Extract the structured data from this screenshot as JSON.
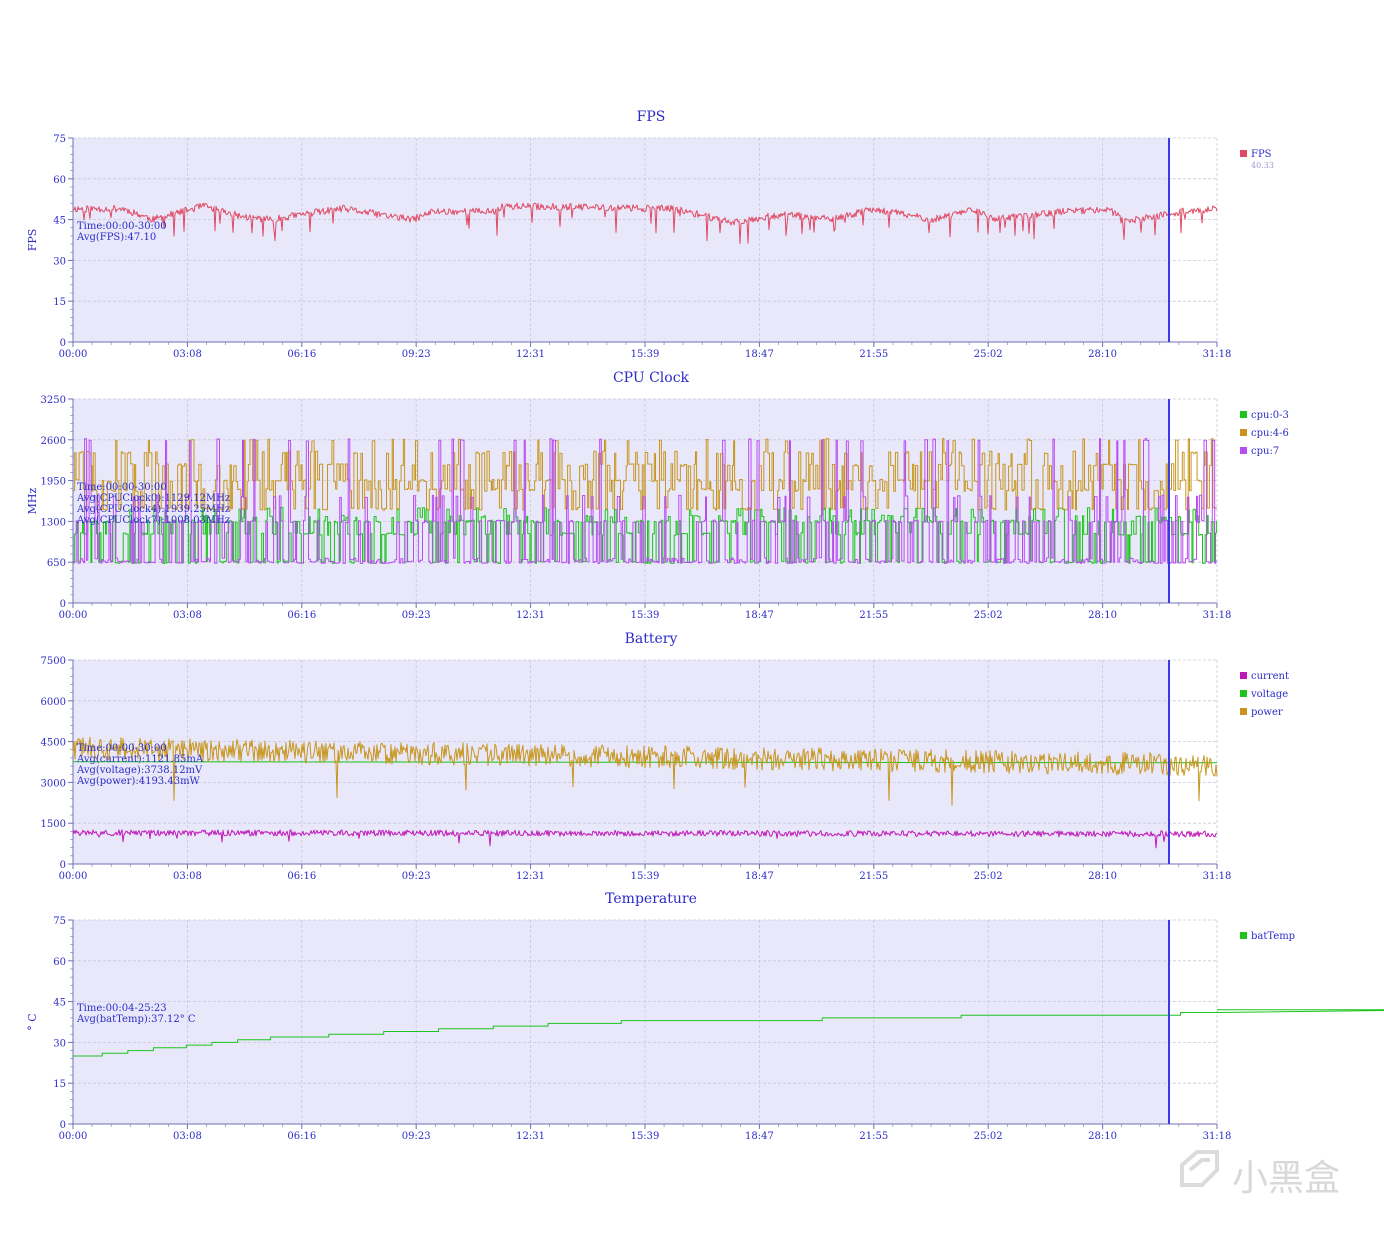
{
  "theme": {
    "plot_bg": "#e8e8fa",
    "axis_color": "#7070b8",
    "grid_color": "#c8c8dc",
    "text_color": "#2c2cc8",
    "marker_color": "#3a3ae6"
  },
  "x_tick_labels": [
    "00:00",
    "03:08",
    "06:16",
    "09:23",
    "12:31",
    "15:39",
    "18:47",
    "21:55",
    "25:02",
    "28:10",
    "31:18"
  ],
  "marker_time": "30:00",
  "watermark": {
    "text": "小黑盒",
    "icon": "heybox-logo-icon"
  },
  "chart_data": [
    {
      "type": "line",
      "title": "FPS",
      "ylabel": "FPS",
      "ylim": [
        0,
        75
      ],
      "yticks": [
        "0",
        "15",
        "30",
        "45",
        "60",
        "75"
      ],
      "annotation": [
        "Time:00:00-30:00",
        "Avg(FPS):47.10"
      ],
      "legend": [
        {
          "name": "FPS",
          "color": "#e04a64",
          "value": "40.33"
        }
      ],
      "series": [
        {
          "name": "FPS",
          "color": "#e04a64",
          "noise": 1.3,
          "spikes": 0.045,
          "spike_depth": 6,
          "seed": 11,
          "segments": [
            [
              0,
              49
            ],
            [
              50,
              49
            ],
            [
              80,
              45
            ],
            [
              130,
              50
            ],
            [
              170,
              46
            ],
            [
              200,
              45
            ],
            [
              230,
              47
            ],
            [
              270,
              49
            ],
            [
              340,
              45
            ],
            [
              360,
              48
            ],
            [
              420,
              48
            ],
            [
              430,
              50
            ],
            [
              600,
              49
            ],
            [
              660,
              44
            ],
            [
              710,
              47
            ],
            [
              760,
              45
            ],
            [
              800,
              49
            ],
            [
              860,
              45
            ],
            [
              900,
              49
            ],
            [
              920,
              45
            ],
            [
              990,
              48
            ],
            [
              1040,
              49
            ],
            [
              1050,
              44
            ],
            [
              1110,
              48
            ],
            [
              1145,
              49
            ],
            [
              1160,
              41
            ],
            [
              1220,
              40
            ]
          ]
        }
      ]
    },
    {
      "type": "line",
      "title": "CPU Clock",
      "ylabel": "MHz",
      "ylim": [
        0,
        3250
      ],
      "yticks": [
        "0",
        "650",
        "1300",
        "1950",
        "2600",
        "3250"
      ],
      "annotation": [
        "Time:00:00-30:00",
        "Avg(CPUClock0):1129.12MHz",
        "Avg(CPUClock4):1939.25MHz",
        "Avg(CPUClock7):1008.03MHz"
      ],
      "legend": [
        {
          "name": "cpu:0-3",
          "color": "#1cc41c"
        },
        {
          "name": "cpu:4-6",
          "color": "#c8961e"
        },
        {
          "name": "cpu:7",
          "color": "#b84cf0"
        }
      ],
      "series": [
        {
          "name": "cpu:0-3",
          "color": "#1cc41c",
          "levels": [
            650,
            1100,
            1300,
            1380,
            1500
          ],
          "weights": [
            0.3,
            0.25,
            0.25,
            0.12,
            0.08
          ],
          "seed": 21
        },
        {
          "name": "cpu:4-6",
          "color": "#c8961e",
          "levels": [
            1500,
            1800,
            1950,
            2200,
            2400,
            2600
          ],
          "weights": [
            0.22,
            0.2,
            0.2,
            0.18,
            0.14,
            0.06
          ],
          "seed": 33
        },
        {
          "name": "cpu:7",
          "color": "#b84cf0",
          "levels": [
            650,
            700,
            1300,
            1700,
            2600
          ],
          "weights": [
            0.45,
            0.15,
            0.25,
            0.08,
            0.07
          ],
          "seed": 47
        }
      ]
    },
    {
      "type": "line",
      "title": "Battery",
      "ylabel": "",
      "ylim": [
        0,
        7500
      ],
      "yticks": [
        "0",
        "1500",
        "3000",
        "4500",
        "6000",
        "7500"
      ],
      "annotation": [
        "Time:00:00-30:00",
        "Avg(current):1121.85mA",
        "Avg(voltage):3738.12mV",
        "Avg(power):4193.43mW"
      ],
      "legend": [
        {
          "name": "current",
          "color": "#c018b8"
        },
        {
          "name": "voltage",
          "color": "#1cc41c"
        },
        {
          "name": "power",
          "color": "#c8961e"
        }
      ],
      "series": [
        {
          "name": "current",
          "color": "#c018b8",
          "segments": [
            [
              0,
              1150
            ],
            [
              1220,
              1100
            ]
          ],
          "noise": 110,
          "spikes": 0.01,
          "spike_depth": 300,
          "seed": 57
        },
        {
          "name": "voltage",
          "color": "#1cc41c",
          "segments": [
            [
              0,
              3760
            ],
            [
              1220,
              3720
            ]
          ],
          "noise": 4,
          "spikes": 0,
          "spike_depth": 0,
          "seed": 61
        },
        {
          "name": "power",
          "color": "#c8961e",
          "segments": [
            [
              0,
              4250
            ],
            [
              1220,
              3600
            ]
          ],
          "noise": 420,
          "spikes": 0.012,
          "spike_depth": 1200,
          "seed": 73
        }
      ]
    },
    {
      "type": "line",
      "title": "Temperature",
      "ylabel": "° C",
      "ylim": [
        0,
        75
      ],
      "yticks": [
        "0",
        "15",
        "30",
        "45",
        "60",
        "75"
      ],
      "annotation": [
        "Time:00:04-25:23",
        "Avg(batTemp):37.12° C"
      ],
      "legend": [
        {
          "name": "batTemp",
          "color": "#1cc41c"
        }
      ],
      "series": [
        {
          "name": "batTemp",
          "color": "#1cc41c",
          "step": true,
          "steps": [
            [
              0,
              25
            ],
            [
              0.8,
              26
            ],
            [
              1.5,
              27
            ],
            [
              2.2,
              28
            ],
            [
              3.1,
              29
            ],
            [
              3.8,
              30
            ],
            [
              4.5,
              31
            ],
            [
              5.4,
              32
            ],
            [
              7.0,
              33
            ],
            [
              8.5,
              34
            ],
            [
              10.0,
              35
            ],
            [
              11.5,
              36
            ],
            [
              13.0,
              37
            ],
            [
              15.0,
              38
            ],
            [
              20.5,
              39
            ],
            [
              24.3,
              40
            ],
            [
              30.3,
              41
            ],
            [
              37.5,
              42
            ],
            [
              46.0,
              42
            ]
          ]
        }
      ]
    }
  ]
}
